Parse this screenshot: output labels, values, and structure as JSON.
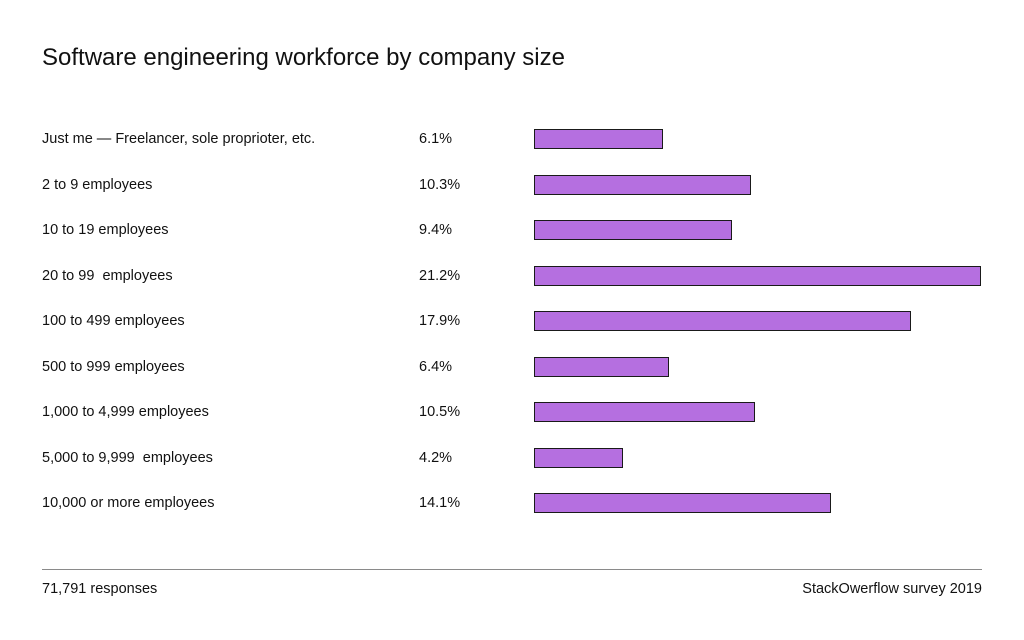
{
  "chart_data": {
    "type": "bar",
    "title": "Software engineering workforce by company size",
    "categories": [
      "Just me — Freelancer, sole proprioter, etc.",
      "2 to 9 employees",
      "10 to 19 employees",
      "20 to 99  employees",
      "100 to 499 employees",
      "500 to 999 employees",
      "1,000 to 4,999 employees",
      "5,000 to 9,999  employees",
      "10,000 or more employees"
    ],
    "values": [
      6.1,
      10.3,
      9.4,
      21.2,
      17.9,
      6.4,
      10.5,
      4.2,
      14.1
    ],
    "value_labels": [
      "6.1%",
      "10.3%",
      "9.4%",
      "21.2%",
      "17.9%",
      "6.4%",
      "10.5%",
      "4.2%",
      "14.1%"
    ],
    "orientation": "horizontal",
    "xlim": [
      0,
      21.2
    ],
    "bar_color": "#b56fe0",
    "grid": false,
    "legend": "none"
  },
  "footer": {
    "responses": "71,791 responses",
    "source": "StackOwerflow survey 2019"
  }
}
